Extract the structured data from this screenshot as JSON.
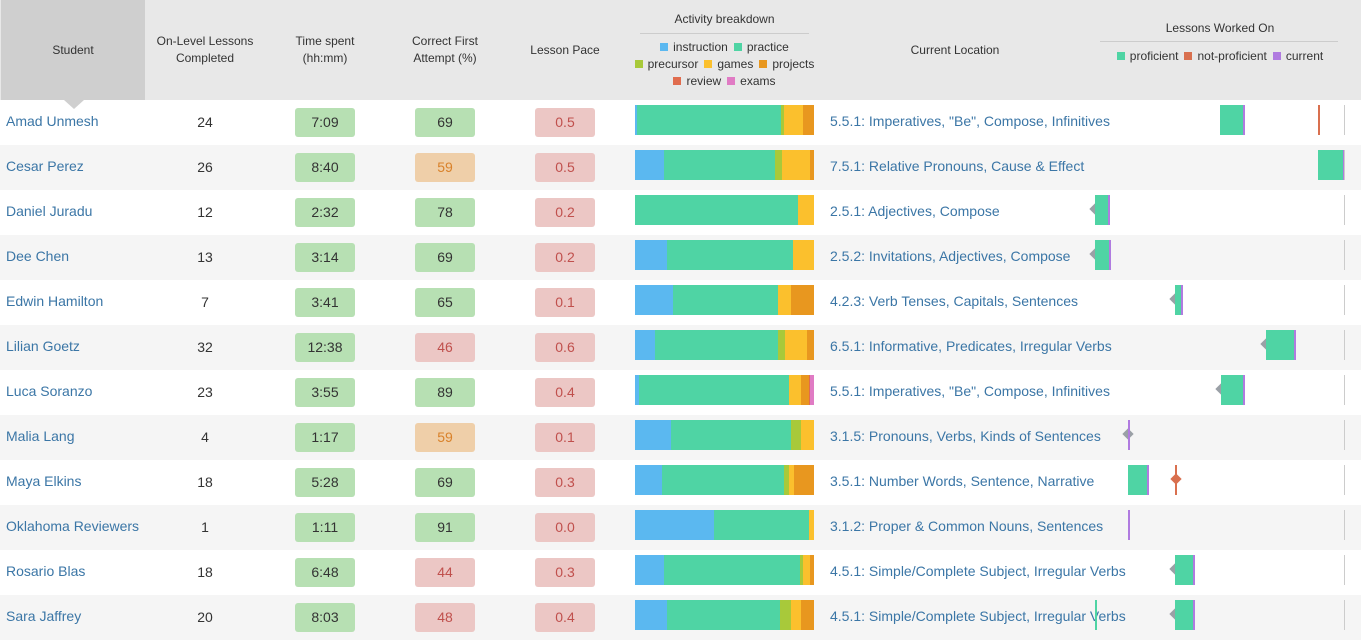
{
  "colors": {
    "instruction": "#5bb8f0",
    "practice": "#4fd4a4",
    "precursor": "#a8c93a",
    "games": "#fbc02d",
    "projects": "#e8971f",
    "review": "#e06c4e",
    "exams": "#e07bc4",
    "proficient": "#4fd4a4",
    "not_proficient": "#d9704f",
    "current": "#b07be0"
  },
  "header": {
    "student": "Student",
    "lessons_completed_l1": "On-Level Lessons",
    "lessons_completed_l2": "Completed",
    "time_l1": "Time spent",
    "time_l2": "(hh:mm)",
    "cfa_l1": "Correct First",
    "cfa_l2": "Attempt (%)",
    "pace": "Lesson Pace",
    "activity_title": "Activity breakdown",
    "activity_legend": [
      {
        "key": "instruction",
        "label": "instruction"
      },
      {
        "key": "practice",
        "label": "practice"
      },
      {
        "key": "precursor",
        "label": "precursor"
      },
      {
        "key": "games",
        "label": "games"
      },
      {
        "key": "projects",
        "label": "projects"
      },
      {
        "key": "review",
        "label": "review"
      },
      {
        "key": "exams",
        "label": "exams"
      }
    ],
    "location": "Current Location",
    "worked_title": "Lessons Worked On",
    "worked_legend": [
      {
        "key": "proficient",
        "label": "proficient"
      },
      {
        "key": "not_proficient",
        "label": "not-proficient"
      },
      {
        "key": "current",
        "label": "current"
      }
    ]
  },
  "students": [
    {
      "name": "Amad Unmesh",
      "completed": "24",
      "time": "7:09",
      "cfa": "69",
      "cfa_level": "good",
      "pace": "0.5",
      "location": "5.5.1: Imperatives, \"Be\", Compose, Infinitives",
      "activity": [
        [
          "instruction",
          1
        ],
        [
          "practice",
          82
        ],
        [
          "precursor",
          2
        ],
        [
          "games",
          11
        ],
        [
          "projects",
          6
        ]
      ]
    },
    {
      "name": "Cesar Perez",
      "completed": "26",
      "time": "8:40",
      "cfa": "59",
      "cfa_level": "warn",
      "pace": "0.5",
      "location": "7.5.1: Relative Pronouns, Cause & Effect",
      "activity": [
        [
          "instruction",
          16
        ],
        [
          "practice",
          62
        ],
        [
          "precursor",
          4
        ],
        [
          "games",
          16
        ],
        [
          "projects",
          2
        ]
      ]
    },
    {
      "name": "Daniel Juradu",
      "completed": "12",
      "time": "2:32",
      "cfa": "78",
      "cfa_level": "good",
      "pace": "0.2",
      "location": "2.5.1: Adjectives, Compose",
      "activity": [
        [
          "practice",
          91
        ],
        [
          "games",
          9
        ]
      ]
    },
    {
      "name": "Dee Chen",
      "completed": "13",
      "time": "3:14",
      "cfa": "69",
      "cfa_level": "good",
      "pace": "0.2",
      "location": "2.5.2: Invitations, Adjectives, Compose",
      "activity": [
        [
          "instruction",
          18
        ],
        [
          "practice",
          70
        ],
        [
          "games",
          12
        ]
      ]
    },
    {
      "name": "Edwin Hamilton",
      "completed": "7",
      "time": "3:41",
      "cfa": "65",
      "cfa_level": "good",
      "pace": "0.1",
      "location": "4.2.3: Verb Tenses, Capitals, Sentences",
      "activity": [
        [
          "instruction",
          21
        ],
        [
          "practice",
          59
        ],
        [
          "games",
          7
        ],
        [
          "projects",
          13
        ]
      ]
    },
    {
      "name": "Lilian Goetz",
      "completed": "32",
      "time": "12:38",
      "cfa": "46",
      "cfa_level": "bad",
      "pace": "0.6",
      "location": "6.5.1: Informative, Predicates, Irregular Verbs",
      "activity": [
        [
          "instruction",
          11
        ],
        [
          "practice",
          69
        ],
        [
          "precursor",
          4
        ],
        [
          "games",
          12
        ],
        [
          "projects",
          4
        ]
      ]
    },
    {
      "name": "Luca Soranzo",
      "completed": "23",
      "time": "3:55",
      "cfa": "89",
      "cfa_level": "good",
      "pace": "0.4",
      "location": "5.5.1: Imperatives, \"Be\", Compose, Infinitives",
      "activity": [
        [
          "instruction",
          2
        ],
        [
          "practice",
          84
        ],
        [
          "games",
          7
        ],
        [
          "projects",
          4
        ],
        [
          "review",
          1
        ],
        [
          "exams",
          2
        ]
      ]
    },
    {
      "name": "Malia Lang",
      "completed": "4",
      "time": "1:17",
      "cfa": "59",
      "cfa_level": "warn",
      "pace": "0.1",
      "location": "3.1.5: Pronouns, Verbs, Kinds of Sentences",
      "activity": [
        [
          "instruction",
          20
        ],
        [
          "practice",
          67
        ],
        [
          "precursor",
          6
        ],
        [
          "games",
          7
        ]
      ]
    },
    {
      "name": "Maya Elkins",
      "completed": "18",
      "time": "5:28",
      "cfa": "69",
      "cfa_level": "good",
      "pace": "0.3",
      "location": "3.5.1: Number Words, Sentence, Narrative",
      "activity": [
        [
          "instruction",
          15
        ],
        [
          "practice",
          68
        ],
        [
          "precursor",
          3
        ],
        [
          "games",
          3
        ],
        [
          "projects",
          11
        ]
      ]
    },
    {
      "name": "Oklahoma Reviewers",
      "completed": "1",
      "time": "1:11",
      "cfa": "91",
      "cfa_level": "good",
      "pace": "0.0",
      "location": "3.1.2: Proper & Common Nouns, Sentences",
      "activity": [
        [
          "instruction",
          44
        ],
        [
          "practice",
          53
        ],
        [
          "games",
          3
        ]
      ]
    },
    {
      "name": "Rosario Blas",
      "completed": "18",
      "time": "6:48",
      "cfa": "44",
      "cfa_level": "bad",
      "pace": "0.3",
      "location": "4.5.1: Simple/Complete Subject, Irregular Verbs",
      "activity": [
        [
          "instruction",
          16
        ],
        [
          "practice",
          76
        ],
        [
          "precursor",
          2
        ],
        [
          "games",
          4
        ],
        [
          "projects",
          2
        ]
      ]
    },
    {
      "name": "Sara Jaffrey",
      "completed": "20",
      "time": "8:03",
      "cfa": "48",
      "cfa_level": "bad",
      "pace": "0.4",
      "location": "4.5.1: Simple/Complete Subject, Irregular Verbs",
      "activity": [
        [
          "instruction",
          18
        ],
        [
          "practice",
          63
        ],
        [
          "precursor",
          6
        ],
        [
          "games",
          6
        ],
        [
          "projects",
          7
        ]
      ]
    }
  ]
}
